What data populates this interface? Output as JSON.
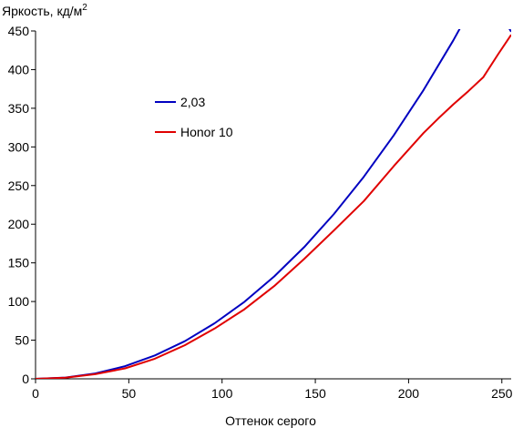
{
  "chart_data": {
    "type": "line",
    "title": "",
    "ylabel": "Яркость, кд/м",
    "ylabel_sup": "2",
    "xlabel": "Оттенок серого",
    "xlim": [
      0,
      255
    ],
    "ylim": [
      0,
      450
    ],
    "xticks": [
      0,
      50,
      100,
      150,
      200,
      250
    ],
    "yticks": [
      0,
      50,
      100,
      150,
      200,
      250,
      300,
      350,
      400,
      450
    ],
    "grid": false,
    "legend_position": "upper-left",
    "series": [
      {
        "name": "2,03",
        "color": "#0000c0",
        "x": [
          0,
          16,
          32,
          48,
          64,
          80,
          96,
          112,
          128,
          144,
          160,
          176,
          192,
          208,
          224,
          240,
          255
        ],
        "y": [
          0,
          1.6,
          6.9,
          16.4,
          30.3,
          48.7,
          71.8,
          99.7,
          132.5,
          170.3,
          213.2,
          261.4,
          314.8,
          373.6,
          437.9,
          507.8,
          449
        ]
      },
      {
        "name": "Honor 10",
        "color": "#e00000",
        "x": [
          0,
          16,
          32,
          48,
          64,
          80,
          96,
          112,
          128,
          144,
          160,
          176,
          192,
          208,
          216,
          224,
          232,
          240,
          248,
          255
        ],
        "y": [
          0,
          1.5,
          6.0,
          13.5,
          26.0,
          43.5,
          65.0,
          90.0,
          120.0,
          155.0,
          192.0,
          230.0,
          275.0,
          318.0,
          337.0,
          355.0,
          372.0,
          390.0,
          420.0,
          445.0
        ]
      }
    ]
  }
}
